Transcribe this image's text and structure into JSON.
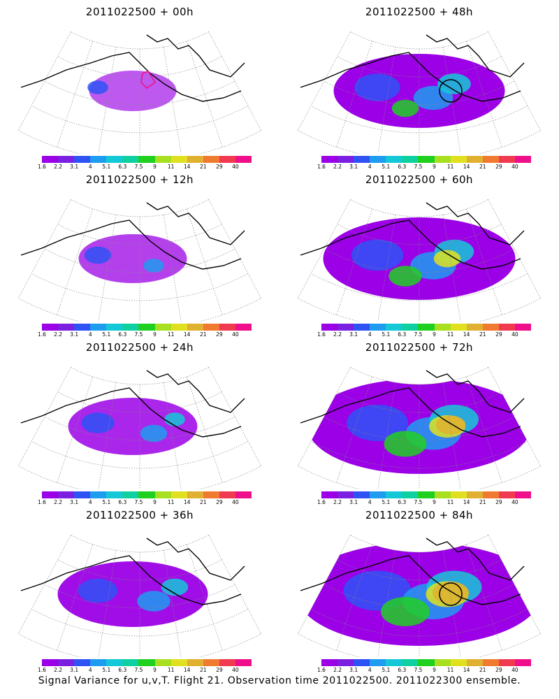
{
  "panels": [
    {
      "title": "2011022500 + 00h",
      "intensity": 0.15,
      "circle": false,
      "box": true
    },
    {
      "title": "2011022500 + 48h",
      "intensity": 0.55,
      "circle": true,
      "box": false
    },
    {
      "title": "2011022500 + 12h",
      "intensity": 0.25,
      "circle": false,
      "box": false
    },
    {
      "title": "2011022500 + 60h",
      "intensity": 0.65,
      "circle": false,
      "box": false
    },
    {
      "title": "2011022500 + 24h",
      "intensity": 0.35,
      "circle": false,
      "box": false
    },
    {
      "title": "2011022500 + 72h",
      "intensity": 0.8,
      "circle": false,
      "box": false
    },
    {
      "title": "2011022500 + 36h",
      "intensity": 0.45,
      "circle": false,
      "box": false
    },
    {
      "title": "2011022500 + 84h",
      "intensity": 0.9,
      "circle": true,
      "box": false
    }
  ],
  "colorbar": {
    "colors": [
      "#9b00e6",
      "#7b1fe0",
      "#2f52f5",
      "#1e9cf0",
      "#14c8d8",
      "#0fd0a0",
      "#1fd020",
      "#a8e020",
      "#e0e020",
      "#e0b030",
      "#f07a30",
      "#f03a50",
      "#f00f8a"
    ],
    "labels": [
      "1.6",
      "2.2",
      "3.1",
      "4",
      "5.1",
      "6.3",
      "7.5",
      "9",
      "11",
      "14",
      "21",
      "29",
      "40"
    ]
  },
  "caption": "Signal Variance for u,v,T. Flight 21. Observation time 2011022500. 2011022300 ensemble."
}
